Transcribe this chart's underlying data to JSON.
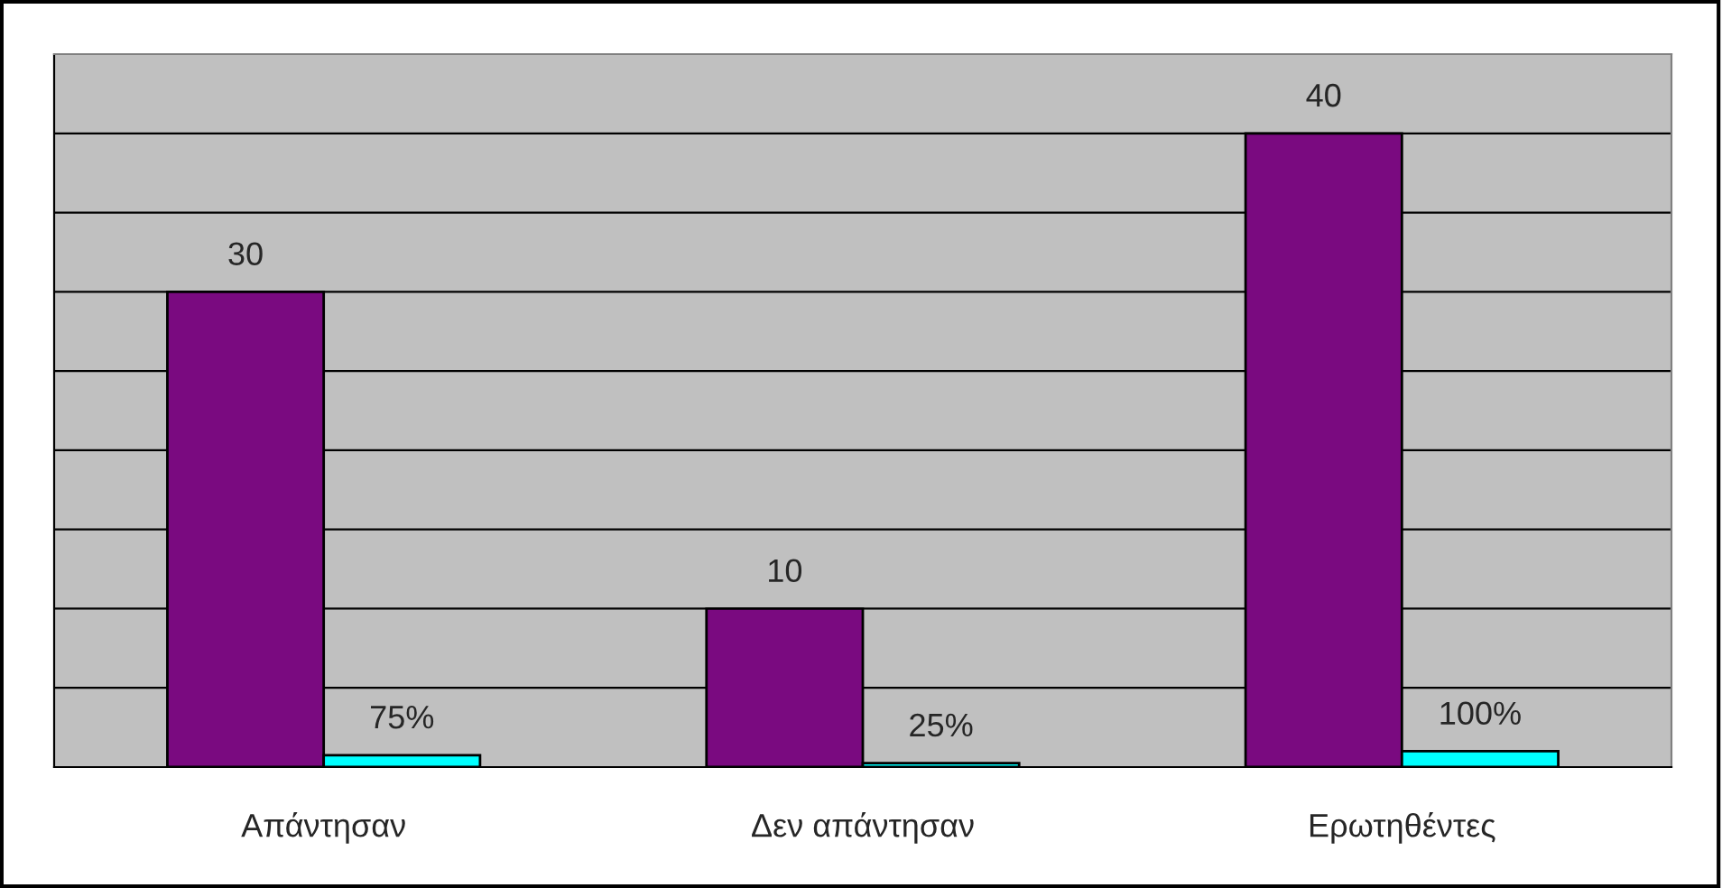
{
  "chart_data": {
    "type": "bar",
    "categories": [
      "Απάντησαν",
      "Δεν απάντησαν",
      "Ερωτηθέντες"
    ],
    "series": [
      {
        "color": "#7a0a80",
        "values": [
          30,
          10,
          40
        ]
      },
      {
        "color": "#00ffff",
        "values": [
          0.75,
          0.25,
          1
        ],
        "value_labels": [
          "75%",
          "25%",
          "100%"
        ]
      }
    ],
    "data_labels": true,
    "ylim": [
      0,
      45
    ],
    "yticks": [
      {
        "value": 0,
        "label": null
      },
      {
        "value": 5,
        "label": null
      },
      {
        "value": 10,
        "label": null
      },
      {
        "value": 15,
        "label": null
      },
      {
        "value": 20,
        "label": null
      },
      {
        "value": 25,
        "label": null
      },
      {
        "value": 30,
        "label": null
      },
      {
        "value": 35,
        "label": null
      },
      {
        "value": 40,
        "label": null
      },
      {
        "value": 45,
        "label": null
      }
    ],
    "grid": "y",
    "legend": false
  }
}
